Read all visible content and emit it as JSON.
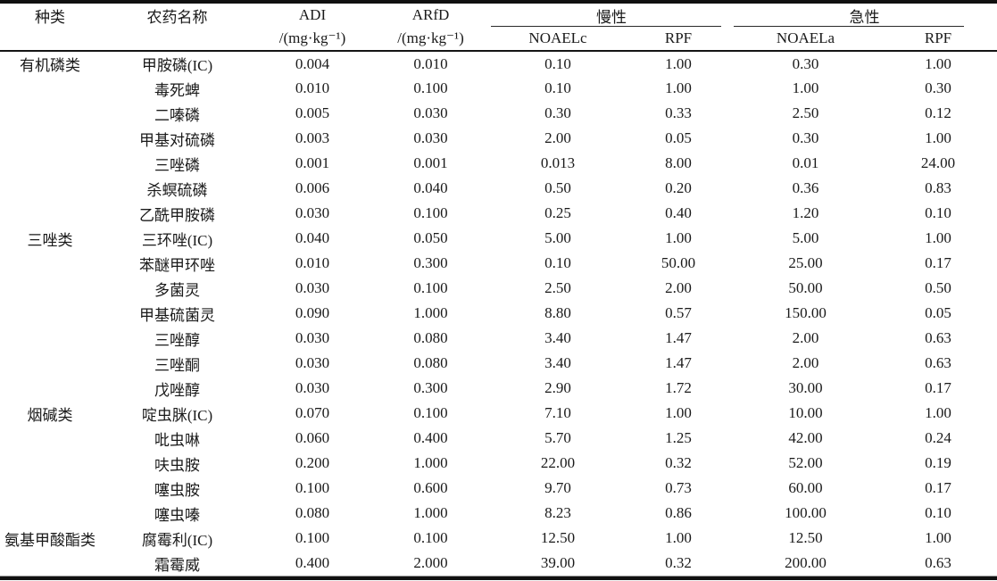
{
  "header": {
    "col_category": "种类",
    "col_pesticide": "农药名称",
    "col_adi": "ADI",
    "col_arfd": "ARfD",
    "adi_unit": "/(mg·kg⁻¹)",
    "arfd_unit": "/(mg·kg⁻¹)",
    "group_chronic": "慢性",
    "group_acute": "急性",
    "col_noael_chronic": "NOAELc",
    "col_rpf_chronic": "RPF",
    "col_noael_acute": "NOAELa",
    "col_rpf_acute": "RPF"
  },
  "rows": [
    {
      "category": "有机磷类",
      "pesticide": "甲胺磷(IC)",
      "adi": "0.004",
      "arfd": "0.010",
      "noaelc": "0.10",
      "rpf_chronic": "1.00",
      "noaela": "0.30",
      "rpf_acute": "1.00"
    },
    {
      "category": "",
      "pesticide": "毒死蜱",
      "adi": "0.010",
      "arfd": "0.100",
      "noaelc": "0.10",
      "rpf_chronic": "1.00",
      "noaela": "1.00",
      "rpf_acute": "0.30"
    },
    {
      "category": "",
      "pesticide": "二嗪磷",
      "adi": "0.005",
      "arfd": "0.030",
      "noaelc": "0.30",
      "rpf_chronic": "0.33",
      "noaela": "2.50",
      "rpf_acute": "0.12"
    },
    {
      "category": "",
      "pesticide": "甲基对硫磷",
      "adi": "0.003",
      "arfd": "0.030",
      "noaelc": "2.00",
      "rpf_chronic": "0.05",
      "noaela": "0.30",
      "rpf_acute": "1.00"
    },
    {
      "category": "",
      "pesticide": "三唑磷",
      "adi": "0.001",
      "arfd": "0.001",
      "noaelc": "0.013",
      "rpf_chronic": "8.00",
      "noaela": "0.01",
      "rpf_acute": "24.00"
    },
    {
      "category": "",
      "pesticide": "杀螟硫磷",
      "adi": "0.006",
      "arfd": "0.040",
      "noaelc": "0.50",
      "rpf_chronic": "0.20",
      "noaela": "0.36",
      "rpf_acute": "0.83"
    },
    {
      "category": "",
      "pesticide": "乙酰甲胺磷",
      "adi": "0.030",
      "arfd": "0.100",
      "noaelc": "0.25",
      "rpf_chronic": "0.40",
      "noaela": "1.20",
      "rpf_acute": "0.10"
    },
    {
      "category": "三唑类",
      "pesticide": "三环唑(IC)",
      "adi": "0.040",
      "arfd": "0.050",
      "noaelc": "5.00",
      "rpf_chronic": "1.00",
      "noaela": "5.00",
      "rpf_acute": "1.00"
    },
    {
      "category": "",
      "pesticide": "苯醚甲环唑",
      "adi": "0.010",
      "arfd": "0.300",
      "noaelc": "0.10",
      "rpf_chronic": "50.00",
      "noaela": "25.00",
      "rpf_acute": "0.17"
    },
    {
      "category": "",
      "pesticide": "多菌灵",
      "adi": "0.030",
      "arfd": "0.100",
      "noaelc": "2.50",
      "rpf_chronic": "2.00",
      "noaela": "50.00",
      "rpf_acute": "0.50"
    },
    {
      "category": "",
      "pesticide": "甲基硫菌灵",
      "adi": "0.090",
      "arfd": "1.000",
      "noaelc": "8.80",
      "rpf_chronic": "0.57",
      "noaela": "150.00",
      "rpf_acute": "0.05"
    },
    {
      "category": "",
      "pesticide": "三唑醇",
      "adi": "0.030",
      "arfd": "0.080",
      "noaelc": "3.40",
      "rpf_chronic": "1.47",
      "noaela": "2.00",
      "rpf_acute": "0.63"
    },
    {
      "category": "",
      "pesticide": "三唑酮",
      "adi": "0.030",
      "arfd": "0.080",
      "noaelc": "3.40",
      "rpf_chronic": "1.47",
      "noaela": "2.00",
      "rpf_acute": "0.63"
    },
    {
      "category": "",
      "pesticide": "戊唑醇",
      "adi": "0.030",
      "arfd": "0.300",
      "noaelc": "2.90",
      "rpf_chronic": "1.72",
      "noaela": "30.00",
      "rpf_acute": "0.17"
    },
    {
      "category": "烟碱类",
      "pesticide": "啶虫脒(IC)",
      "adi": "0.070",
      "arfd": "0.100",
      "noaelc": "7.10",
      "rpf_chronic": "1.00",
      "noaela": "10.00",
      "rpf_acute": "1.00"
    },
    {
      "category": "",
      "pesticide": "吡虫啉",
      "adi": "0.060",
      "arfd": "0.400",
      "noaelc": "5.70",
      "rpf_chronic": "1.25",
      "noaela": "42.00",
      "rpf_acute": "0.24"
    },
    {
      "category": "",
      "pesticide": "呋虫胺",
      "adi": "0.200",
      "arfd": "1.000",
      "noaelc": "22.00",
      "rpf_chronic": "0.32",
      "noaela": "52.00",
      "rpf_acute": "0.19"
    },
    {
      "category": "",
      "pesticide": "噻虫胺",
      "adi": "0.100",
      "arfd": "0.600",
      "noaelc": "9.70",
      "rpf_chronic": "0.73",
      "noaela": "60.00",
      "rpf_acute": "0.17"
    },
    {
      "category": "",
      "pesticide": "噻虫嗪",
      "adi": "0.080",
      "arfd": "1.000",
      "noaelc": "8.23",
      "rpf_chronic": "0.86",
      "noaela": "100.00",
      "rpf_acute": "0.10"
    },
    {
      "category": "氨基甲酸酯类",
      "pesticide": "腐霉利(IC)",
      "adi": "0.100",
      "arfd": "0.100",
      "noaelc": "12.50",
      "rpf_chronic": "1.00",
      "noaela": "12.50",
      "rpf_acute": "1.00"
    },
    {
      "category": "",
      "pesticide": "霜霉威",
      "adi": "0.400",
      "arfd": "2.000",
      "noaelc": "39.00",
      "rpf_chronic": "0.32",
      "noaela": "200.00",
      "rpf_acute": "0.63"
    }
  ],
  "colors": {
    "rule": "#101010",
    "text": "#1a1a1a",
    "background": "#ffffff"
  }
}
